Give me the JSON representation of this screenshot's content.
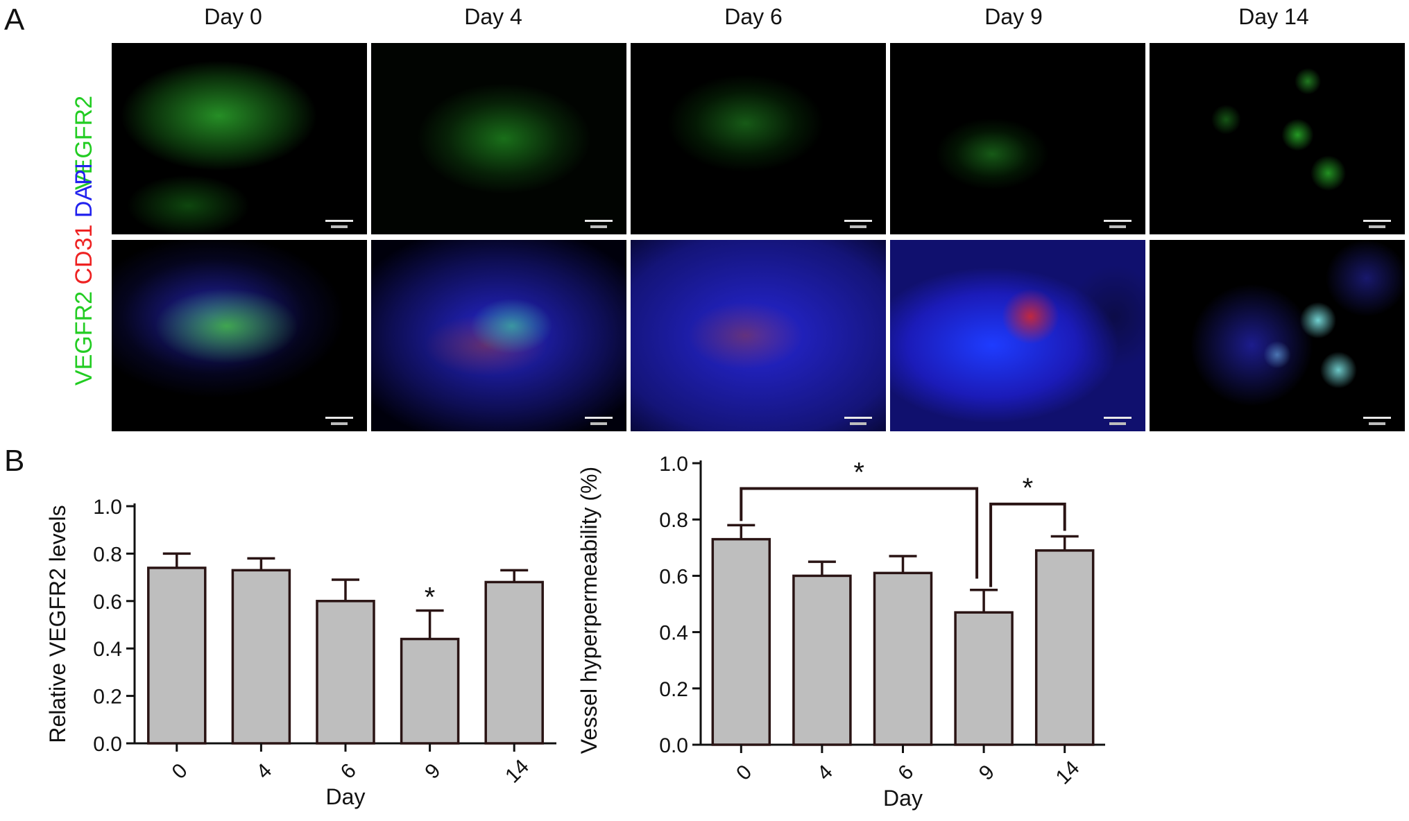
{
  "panel_a": {
    "letter": "A",
    "columns": [
      "Day 0",
      "Day 4",
      "Day 6",
      "Day 9",
      "Day 14"
    ],
    "row_labels": {
      "top": [
        {
          "text": "VEGFR2",
          "color": "#22cc22"
        }
      ],
      "bottom": [
        {
          "text": "VEGFR2",
          "color": "#22cc22"
        },
        {
          "text": "CD31",
          "color": "#ee2222"
        },
        {
          "text": "DAPI",
          "color": "#2222ee"
        }
      ]
    }
  },
  "panel_b": {
    "letter": "B"
  },
  "chart_data": [
    {
      "type": "bar",
      "categories": [
        "0",
        "4",
        "6",
        "9",
        "14"
      ],
      "values": [
        0.74,
        0.73,
        0.6,
        0.44,
        0.68
      ],
      "errors": [
        0.06,
        0.05,
        0.09,
        0.12,
        0.05
      ],
      "xlabel": "Day",
      "ylabel": "Relative VEGFR2 levels",
      "ylim": [
        0,
        1.0
      ],
      "yticks": [
        "0.0",
        "0.2",
        "0.4",
        "0.6",
        "0.8",
        "1.0"
      ],
      "bar_color": "#bebebe",
      "significance": [
        {
          "category": "9",
          "label": "*"
        }
      ]
    },
    {
      "type": "bar",
      "categories": [
        "0",
        "4",
        "6",
        "9",
        "14"
      ],
      "values": [
        0.73,
        0.6,
        0.61,
        0.47,
        0.69
      ],
      "errors": [
        0.05,
        0.05,
        0.06,
        0.08,
        0.05
      ],
      "xlabel": "Day",
      "ylabel": "Vessel hyperpermeability (%)",
      "ylim": [
        0,
        1.0
      ],
      "yticks": [
        "0.0",
        "0.2",
        "0.4",
        "0.6",
        "0.8",
        "1.0"
      ],
      "bar_color": "#bebebe",
      "comparisons": [
        {
          "from": "0",
          "to": "9",
          "label": "*"
        },
        {
          "from": "9",
          "to": "14",
          "label": "*"
        }
      ]
    }
  ]
}
